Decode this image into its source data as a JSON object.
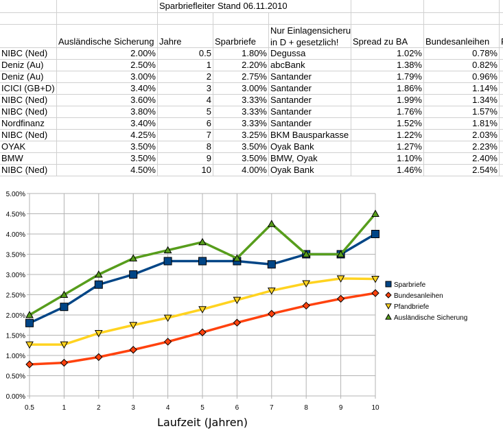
{
  "sheet": {
    "title": "Sparbriefleiter",
    "stand": "Stand 06.11.2010",
    "headers": {
      "ausl": "Ausländische Sicherung",
      "jahre": "Jahre",
      "spar": "Sparbriefe",
      "nur1": "Nur Einlagensicherung",
      "nur2": "in D + gesetzlich!",
      "spread": "Spread zu BA",
      "bund": "Bundesanleihen",
      "pfand": "P"
    },
    "rows": [
      [
        "NIBC (Ned)",
        "2.00%",
        "0.5",
        "1.80%",
        "Degussa",
        "1.02%",
        "0.78%"
      ],
      [
        "Deniz (Au)",
        "2.50%",
        "1",
        "2.20%",
        "abcBank",
        "1.38%",
        "0.82%"
      ],
      [
        "Deniz (Au)",
        "3.00%",
        "2",
        "2.75%",
        "Santander",
        "1.79%",
        "0.96%"
      ],
      [
        "ICICI (GB+D)",
        "3.40%",
        "3",
        "3.00%",
        "Santander",
        "1.86%",
        "1.14%"
      ],
      [
        "NIBC (Ned)",
        "3.60%",
        "4",
        "3.33%",
        "Santander",
        "1.99%",
        "1.34%"
      ],
      [
        "NIBC (Ned)",
        "3.80%",
        "5",
        "3.33%",
        "Santander",
        "1.76%",
        "1.57%"
      ],
      [
        "Nordfinanz",
        "3.40%",
        "6",
        "3.33%",
        "Santander",
        "1.52%",
        "1.81%"
      ],
      [
        "NIBC (Ned)",
        "4.25%",
        "7",
        "3.25%",
        "BKM Bausparkasse",
        "1.22%",
        "2.03%"
      ],
      [
        "OYAK",
        "3.50%",
        "8",
        "3.50%",
        "Oyak Bank",
        "1.27%",
        "2.23%"
      ],
      [
        "BMW",
        "3.50%",
        "9",
        "3.50%",
        "BMW, Oyak",
        "1.10%",
        "2.40%"
      ],
      [
        "NIBC (Ned)",
        "4.50%",
        "10",
        "4.00%",
        "Oyak Bank",
        "1.46%",
        "2.54%"
      ]
    ]
  },
  "chart_data": {
    "type": "line",
    "xlabel": "Laufzeit (Jahren)",
    "ylabel": "",
    "categories": [
      "0.5",
      "1",
      "2",
      "3",
      "4",
      "5",
      "6",
      "7",
      "8",
      "9",
      "10"
    ],
    "yticks": [
      "0.00%",
      "0.50%",
      "1.00%",
      "1.50%",
      "2.00%",
      "2.50%",
      "3.00%",
      "3.50%",
      "4.00%",
      "4.50%",
      "5.00%"
    ],
    "ylim": [
      0,
      5
    ],
    "grid": true,
    "legend": "right",
    "series": [
      {
        "name": "Sparbriefe",
        "color": "#004586",
        "marker": "square",
        "values": [
          1.8,
          2.2,
          2.75,
          3.0,
          3.33,
          3.33,
          3.33,
          3.25,
          3.5,
          3.5,
          4.0
        ]
      },
      {
        "name": "Bundesanleihen",
        "color": "#ff420e",
        "marker": "diamond",
        "values": [
          0.78,
          0.82,
          0.96,
          1.14,
          1.34,
          1.57,
          1.81,
          2.03,
          2.23,
          2.4,
          2.54
        ]
      },
      {
        "name": "Pfandbriefe",
        "color": "#ffd320",
        "marker": "triangle-down",
        "values": [
          1.27,
          1.27,
          1.55,
          1.75,
          1.93,
          2.14,
          2.37,
          2.6,
          2.78,
          2.9,
          2.89
        ]
      },
      {
        "name": "Ausländische Sicherung",
        "color": "#579d1c",
        "marker": "triangle-up",
        "values": [
          2.0,
          2.5,
          3.0,
          3.4,
          3.6,
          3.8,
          3.4,
          4.25,
          3.5,
          3.5,
          4.5
        ]
      }
    ]
  }
}
